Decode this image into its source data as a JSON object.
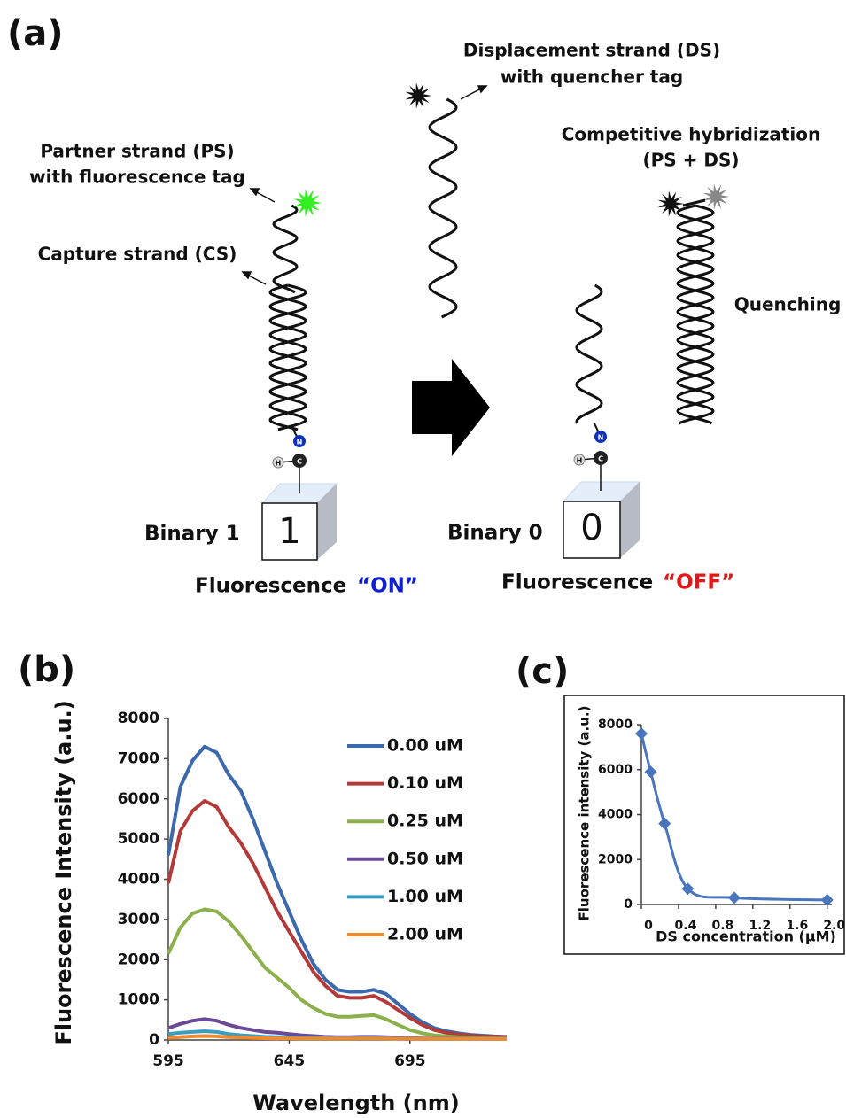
{
  "diagram": {
    "label": "(a)",
    "partner_strand": [
      "Partner strand (PS)",
      "with fluorescence tag"
    ],
    "capture_strand": "Capture strand (CS)",
    "displacement_strand": [
      "Displacement strand (DS)",
      "with quencher tag"
    ],
    "competitive": [
      "Competitive hybridization",
      "(PS + DS)"
    ],
    "quenching": "Quenching",
    "atoms": [
      "N",
      "C",
      "H"
    ],
    "state_on": {
      "binary": "Binary 1",
      "digit": "1",
      "fluorescence": "Fluorescence",
      "status": "“ON”"
    },
    "state_off": {
      "binary": "Binary 0",
      "digit": "0",
      "fluorescence": "Fluorescence",
      "status": "“OFF”"
    }
  },
  "chart_data": [
    {
      "type": "line",
      "label": "(b)",
      "x_label": "Wavelength (nm)",
      "y_label": "Fluorescence Intensity (a.u.)",
      "x": [
        595,
        600,
        605,
        610,
        615,
        620,
        625,
        630,
        635,
        640,
        645,
        650,
        655,
        660,
        665,
        670,
        675,
        680,
        685,
        690,
        695,
        700,
        705,
        710,
        715,
        720,
        725,
        730,
        735
      ],
      "xlim": [
        595,
        735
      ],
      "xticks": [
        595,
        645,
        695
      ],
      "ylim": [
        0,
        8000
      ],
      "yticks": [
        0,
        1000,
        2000,
        3000,
        4000,
        5000,
        6000,
        7000,
        8000
      ],
      "legend": "right",
      "series": [
        {
          "name": "0.00 uM",
          "color": "#3c69ab",
          "values": [
            4600,
            6300,
            6950,
            7300,
            7150,
            6600,
            6200,
            5500,
            4700,
            3900,
            3200,
            2500,
            1900,
            1500,
            1250,
            1200,
            1200,
            1250,
            1150,
            900,
            650,
            450,
            300,
            220,
            170,
            130,
            110,
            90,
            80
          ]
        },
        {
          "name": "0.10 uM",
          "color": "#b23a38",
          "values": [
            3900,
            5200,
            5700,
            5950,
            5800,
            5300,
            4900,
            4400,
            3800,
            3200,
            2700,
            2200,
            1700,
            1350,
            1100,
            1050,
            1050,
            1100,
            950,
            750,
            550,
            380,
            250,
            180,
            140,
            110,
            90,
            80,
            70
          ]
        },
        {
          "name": "0.25 uM",
          "color": "#8cb04c",
          "values": [
            2150,
            2800,
            3150,
            3250,
            3200,
            2950,
            2600,
            2200,
            1800,
            1550,
            1300,
            1000,
            800,
            650,
            580,
            580,
            600,
            620,
            520,
            380,
            250,
            170,
            120,
            90,
            70,
            60,
            50,
            45,
            40
          ]
        },
        {
          "name": "0.50 uM",
          "color": "#6a4996",
          "values": [
            300,
            400,
            480,
            520,
            480,
            380,
            300,
            250,
            200,
            180,
            150,
            120,
            100,
            80,
            70,
            70,
            80,
            80,
            70,
            60,
            50,
            40,
            40,
            40,
            40,
            40,
            40,
            40,
            40
          ]
        },
        {
          "name": "1.00 uM",
          "color": "#3a9fc2",
          "values": [
            150,
            180,
            200,
            220,
            200,
            150,
            120,
            100,
            80,
            70,
            60,
            50,
            50,
            45,
            45,
            45,
            50,
            50,
            45,
            40,
            40,
            35,
            35,
            35,
            35,
            35,
            35,
            35,
            35
          ]
        },
        {
          "name": "2.00 uM",
          "color": "#ee8a2f",
          "values": [
            50,
            70,
            90,
            100,
            90,
            70,
            60,
            50,
            45,
            40,
            40,
            35,
            35,
            35,
            35,
            35,
            35,
            35,
            35,
            30,
            30,
            30,
            30,
            30,
            30,
            30,
            30,
            30,
            30
          ]
        }
      ]
    },
    {
      "type": "scatter",
      "label": "(c)",
      "x_label": "DS concentration (μM)",
      "y_label": "Fluorescence intensity (a.u.)",
      "x": [
        0,
        0.1,
        0.25,
        0.5,
        1.0,
        2.0
      ],
      "values": [
        7600,
        5900,
        3600,
        700,
        300,
        200
      ],
      "color": "#4a76bd",
      "marker": "diamond",
      "smooth": true,
      "xlim": [
        0,
        2.05
      ],
      "xticks": [
        0,
        0.4,
        0.8,
        {
          "value": 1.2,
          "label": "1.2"
        },
        1.6,
        {
          "value": 2.0,
          "label": "2.0"
        }
      ],
      "ylim": [
        0,
        8000
      ],
      "yticks": [
        0,
        2000,
        4000,
        6000,
        8000
      ]
    }
  ]
}
